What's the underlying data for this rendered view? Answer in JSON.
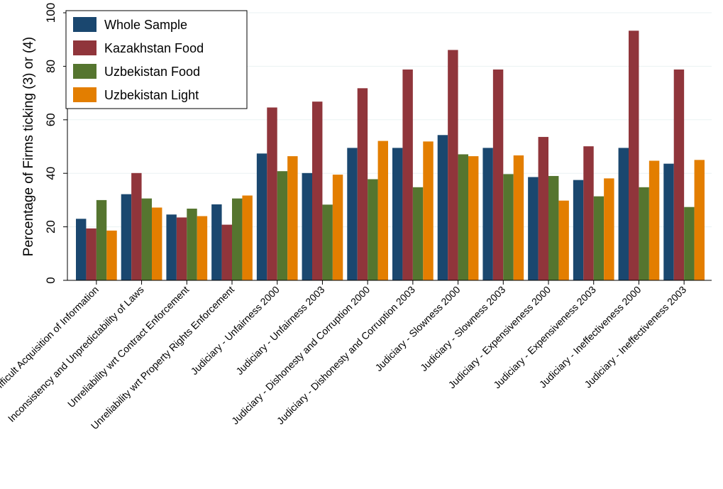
{
  "chart_data": {
    "type": "bar",
    "ylabel": "Percentage of Firms ticking (3) or (4)",
    "xlabel": "",
    "ylim": [
      0,
      100
    ],
    "yticks": [
      0,
      20,
      40,
      60,
      80,
      100
    ],
    "grid": true,
    "legend_position": "top-left",
    "categories": [
      "Difficult Acquisition of Information",
      "Inconsistency and Unpredictability of Laws",
      "Unreliability wrt Contract Enforcement",
      "Unreliability wrt Property Rights Enforcement",
      "Judiciary - Unfairness 2000",
      "Judiciary - Unfairness 2003",
      "Judiciary - Dishonesty and Corruption 2000",
      "Judiciary - Dishonesty and Corruption 2003",
      "Judiciary - Slowness 2000",
      "Judiciary - Slowness 2003",
      "Judiciary - Expensiveness 2000",
      "Judiciary - Expensiveness 2003",
      "Judiciary - Ineffectiveness 2000",
      "Judiciary - Ineffectiveness 2003"
    ],
    "series": [
      {
        "name": "Whole Sample",
        "color": "#1a476f",
        "values": [
          23,
          32.2,
          24.6,
          28.4,
          47.4,
          40.1,
          49.5,
          49.5,
          54.3,
          49.5,
          38.6,
          37.5,
          49.5,
          43.6
        ]
      },
      {
        "name": "Kazakhstan Food",
        "color": "#90353b",
        "values": [
          19.4,
          40.1,
          23.5,
          20.8,
          64.6,
          66.8,
          71.8,
          78.8,
          86.1,
          78.8,
          53.6,
          50.1,
          93.3,
          78.8
        ]
      },
      {
        "name": "Uzbekistan Food",
        "color": "#55752f",
        "values": [
          30,
          30.6,
          26.8,
          30.6,
          40.8,
          28.3,
          37.8,
          34.8,
          47.1,
          39.7,
          39,
          31.4,
          34.8,
          27.4
        ]
      },
      {
        "name": "Uzbekistan Light",
        "color": "#e37e00",
        "values": [
          18.6,
          27.2,
          24,
          31.7,
          46.4,
          39.5,
          52.1,
          51.9,
          46.4,
          46.7,
          29.8,
          38.1,
          44.7,
          45
        ]
      }
    ]
  }
}
